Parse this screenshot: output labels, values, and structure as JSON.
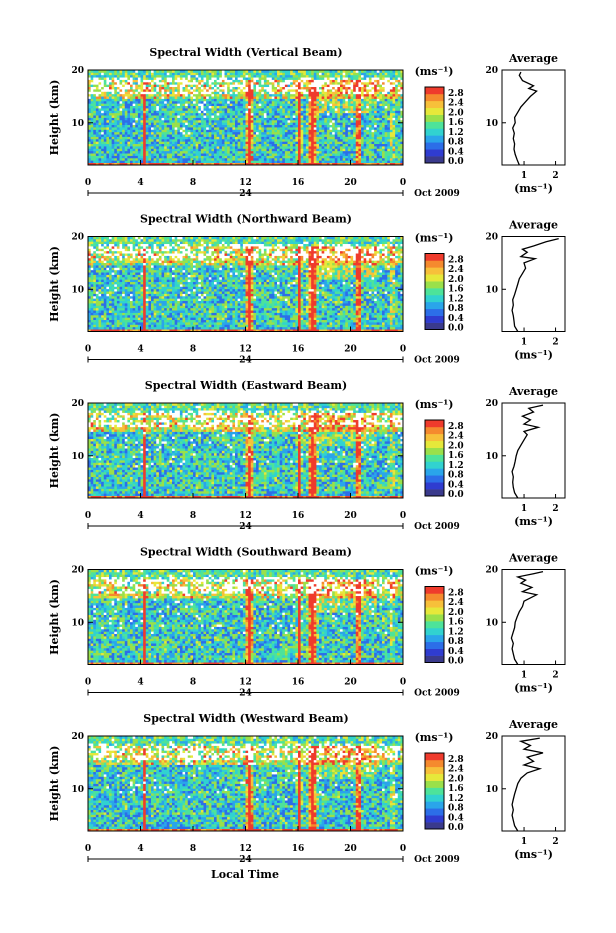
{
  "chart_data": {
    "type": "heatmap",
    "colorscale": [
      "#3a3a8c",
      "#2f3cd0",
      "#2c6ee8",
      "#2aa5ea",
      "#31d2d0",
      "#4de39a",
      "#9ae04a",
      "#e6e83a",
      "#f7c03a",
      "#f58a2e",
      "#ef3b2c"
    ],
    "colorbar_ticks": [
      "2.8",
      "2.4",
      "2.0",
      "1.6",
      "1.2",
      "0.8",
      "0.4",
      "0.0"
    ],
    "colorbar_unit": "(ms⁻¹)",
    "xlabel": "Local Time",
    "ylabel": "Height (km)",
    "x_ticks": [
      "0",
      "4",
      "8",
      "12",
      "16",
      "20",
      "0"
    ],
    "y_ticks": [
      "10",
      "20"
    ],
    "xlim": [
      0,
      24
    ],
    "ylim": [
      2,
      20
    ],
    "date_label": "Oct 2009",
    "day_label": "24",
    "panels": [
      {
        "title": "Spectral Width (Vertical Beam)",
        "average": {
          "title": "Average",
          "xlabel": "(ms⁻¹)",
          "x_ticks": [
            "1",
            "2"
          ],
          "y_ticks": [
            "10",
            "20"
          ],
          "xlim": [
            0.3,
            2.3
          ],
          "profile": [
            [
              0.85,
              2
            ],
            [
              0.78,
              3
            ],
            [
              0.72,
              4
            ],
            [
              0.68,
              5
            ],
            [
              0.7,
              6
            ],
            [
              0.66,
              7
            ],
            [
              0.69,
              8
            ],
            [
              0.64,
              9
            ],
            [
              0.72,
              10
            ],
            [
              0.7,
              11
            ],
            [
              0.8,
              12
            ],
            [
              0.9,
              13
            ],
            [
              1.05,
              14
            ],
            [
              1.2,
              15
            ],
            [
              1.4,
              16
            ],
            [
              1.15,
              16.5
            ],
            [
              1.3,
              17
            ],
            [
              0.95,
              18
            ],
            [
              0.85,
              19
            ],
            [
              0.9,
              19.6
            ]
          ]
        }
      },
      {
        "title": "Spectral Width (Northward Beam)",
        "average": {
          "title": "Average",
          "xlabel": "(ms⁻¹)",
          "x_ticks": [
            "1",
            "2"
          ],
          "y_ticks": [
            "10",
            "20"
          ],
          "xlim": [
            0.3,
            2.3
          ],
          "profile": [
            [
              0.8,
              2
            ],
            [
              0.7,
              3
            ],
            [
              0.68,
              4
            ],
            [
              0.66,
              5
            ],
            [
              0.62,
              6
            ],
            [
              0.66,
              7
            ],
            [
              0.64,
              8
            ],
            [
              0.7,
              9
            ],
            [
              0.75,
              10
            ],
            [
              0.8,
              11
            ],
            [
              0.85,
              12
            ],
            [
              0.95,
              13
            ],
            [
              1.05,
              14
            ],
            [
              1.0,
              15
            ],
            [
              1.35,
              15.8
            ],
            [
              0.9,
              16.2
            ],
            [
              1.1,
              17
            ],
            [
              0.95,
              17.6
            ],
            [
              1.3,
              18.2
            ],
            [
              1.7,
              19
            ],
            [
              2.1,
              19.6
            ]
          ]
        }
      },
      {
        "title": "Spectral Width (Eastward Beam)",
        "average": {
          "title": "Average",
          "xlabel": "(ms⁻¹)",
          "x_ticks": [
            "1",
            "2"
          ],
          "y_ticks": [
            "10",
            "20"
          ],
          "xlim": [
            0.3,
            2.3
          ],
          "profile": [
            [
              0.8,
              2
            ],
            [
              0.7,
              3
            ],
            [
              0.66,
              4
            ],
            [
              0.64,
              5
            ],
            [
              0.66,
              6
            ],
            [
              0.62,
              7
            ],
            [
              0.68,
              8
            ],
            [
              0.72,
              9
            ],
            [
              0.75,
              10
            ],
            [
              0.8,
              11
            ],
            [
              0.9,
              12
            ],
            [
              1.0,
              13
            ],
            [
              1.1,
              14
            ],
            [
              1.0,
              14.6
            ],
            [
              1.45,
              15.4
            ],
            [
              1.0,
              16
            ],
            [
              1.2,
              16.8
            ],
            [
              0.95,
              17.5
            ],
            [
              1.3,
              18.3
            ],
            [
              1.15,
              19
            ],
            [
              1.6,
              19.6
            ]
          ]
        }
      },
      {
        "title": "Spectral Width (Southward Beam)",
        "average": {
          "title": "Average",
          "xlabel": "(ms⁻¹)",
          "x_ticks": [
            "1",
            "2"
          ],
          "y_ticks": [
            "10",
            "20"
          ],
          "xlim": [
            0.3,
            2.3
          ],
          "profile": [
            [
              0.8,
              2
            ],
            [
              0.7,
              3
            ],
            [
              0.66,
              4
            ],
            [
              0.62,
              5
            ],
            [
              0.66,
              6
            ],
            [
              0.6,
              7
            ],
            [
              0.65,
              8
            ],
            [
              0.7,
              9
            ],
            [
              0.72,
              10
            ],
            [
              0.78,
              11
            ],
            [
              0.85,
              12
            ],
            [
              0.95,
              13
            ],
            [
              1.0,
              14
            ],
            [
              1.4,
              15.2
            ],
            [
              0.95,
              15.8
            ],
            [
              1.25,
              16.6
            ],
            [
              0.9,
              17.4
            ],
            [
              1.05,
              18
            ],
            [
              0.8,
              18.6
            ],
            [
              1.3,
              19.2
            ],
            [
              1.6,
              19.6
            ]
          ]
        }
      },
      {
        "title": "Spectral Width (Westward Beam)",
        "average": {
          "title": "Average",
          "xlabel": "(ms⁻¹)",
          "x_ticks": [
            "1",
            "2"
          ],
          "y_ticks": [
            "10",
            "20"
          ],
          "xlim": [
            0.3,
            2.3
          ],
          "profile": [
            [
              0.8,
              2
            ],
            [
              0.7,
              3
            ],
            [
              0.66,
              4
            ],
            [
              0.62,
              5
            ],
            [
              0.66,
              6
            ],
            [
              0.62,
              7
            ],
            [
              0.66,
              8
            ],
            [
              0.7,
              9
            ],
            [
              0.75,
              10
            ],
            [
              0.8,
              11
            ],
            [
              0.9,
              12
            ],
            [
              1.1,
              13
            ],
            [
              1.5,
              13.8
            ],
            [
              1.0,
              14.5
            ],
            [
              1.3,
              15.2
            ],
            [
              1.1,
              16
            ],
            [
              1.6,
              16.8
            ],
            [
              1.0,
              17.5
            ],
            [
              1.2,
              18.2
            ],
            [
              0.9,
              19
            ],
            [
              1.5,
              19.6
            ]
          ]
        }
      }
    ]
  }
}
